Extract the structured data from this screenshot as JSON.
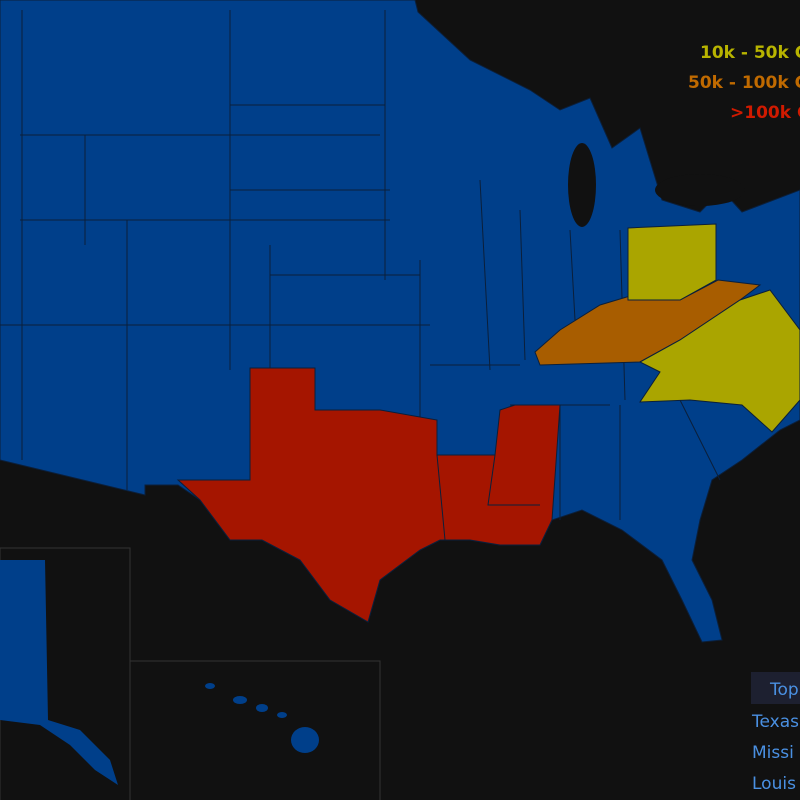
{
  "legend": {
    "items": [
      {
        "label": "10k - 50k C"
      },
      {
        "label": "50k - 100k C"
      },
      {
        "label": ">100k C"
      }
    ]
  },
  "table": {
    "header": "Top",
    "rows": [
      "Texas",
      "Missi",
      "Louis"
    ]
  }
}
